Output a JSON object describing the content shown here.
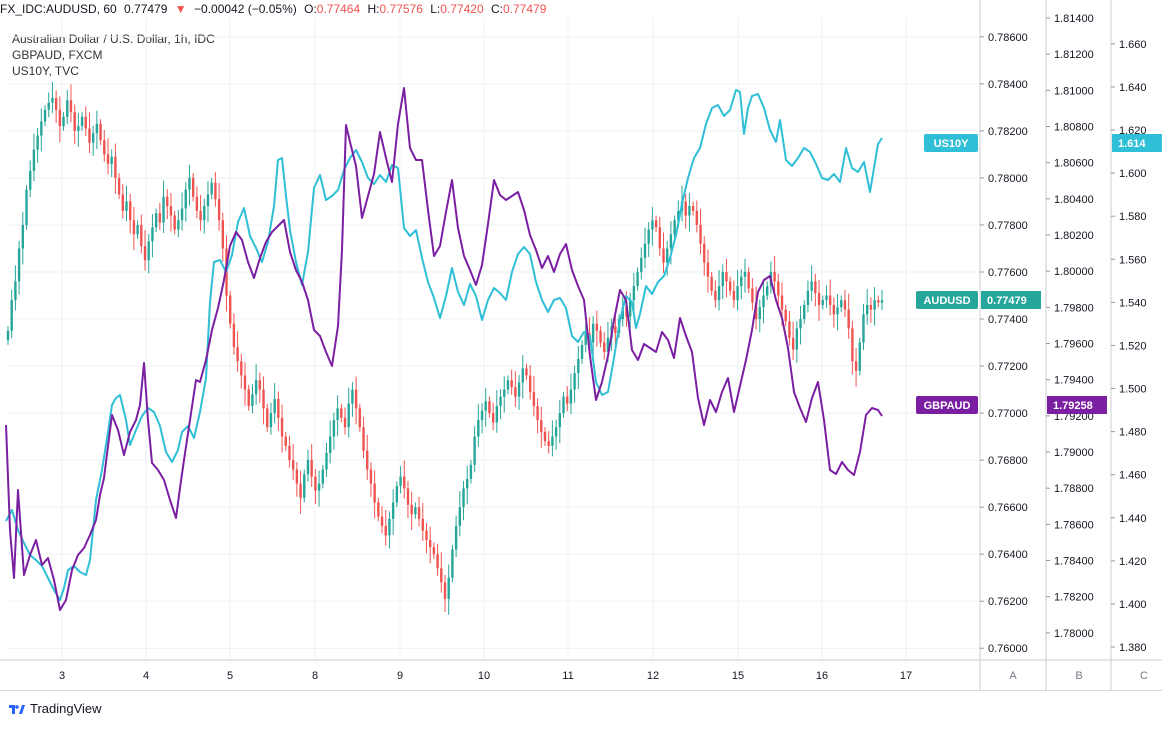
{
  "header": {
    "symbol": "FX_IDC:AUDUSD, 60",
    "last": "0.77479",
    "change": "−0.00042 (−0.05%)",
    "open_label": "O:",
    "open": "0.77464",
    "high_label": "H:",
    "high": "0.77576",
    "low_label": "L:",
    "low": "0.77420",
    "close_label": "C:",
    "close": "0.77479",
    "change_arrow": "▼"
  },
  "legend": {
    "main": "Australian Dollar / U.S. Dollar, 1h, IDC",
    "overlay1": "GBPAUD, FXCM",
    "overlay2": "US10Y, TVC"
  },
  "footer": {
    "brand": "TradingView"
  },
  "colors": {
    "up": "#26a69a",
    "down": "#ef5350",
    "us10y": "#2fbfd6",
    "gbpaud": "#7b1fa2",
    "grid": "#eef0f3"
  },
  "chart_data": {
    "type": "line",
    "x_ticks": [
      "3",
      "4",
      "5",
      "8",
      "9",
      "10",
      "11",
      "12",
      "15",
      "16",
      "17"
    ],
    "axes": {
      "A": {
        "name": "A",
        "min": 0.7595,
        "max": 0.7868,
        "ticks": [
          "0.78600",
          "0.78400",
          "0.78200",
          "0.78000",
          "0.77800",
          "0.77600",
          "0.77400",
          "0.77200",
          "0.77000",
          "0.76800",
          "0.76600",
          "0.76400",
          "0.76200",
          "0.76000"
        ]
      },
      "B": {
        "name": "B",
        "min": 1.7785,
        "max": 1.814,
        "ticks": [
          "1.81400",
          "1.81200",
          "1.81000",
          "1.80800",
          "1.80600",
          "1.80400",
          "1.80200",
          "1.80000",
          "1.79800",
          "1.79600",
          "1.79400",
          "1.79200",
          "1.79000",
          "1.78800",
          "1.78600",
          "1.78400",
          "1.78200",
          "1.78000"
        ]
      },
      "C": {
        "name": "C",
        "min": 1.374,
        "max": 1.672,
        "ticks": [
          "1.660",
          "1.640",
          "1.620",
          "1.600",
          "1.580",
          "1.560",
          "1.540",
          "1.520",
          "1.500",
          "1.480",
          "1.460",
          "1.440",
          "1.420",
          "1.400",
          "1.380"
        ]
      }
    },
    "badges": [
      {
        "label": "US10Y",
        "value": "1.614",
        "color": "#2fbfd6",
        "axis": "C",
        "level": 1.614
      },
      {
        "label": "AUDUSD",
        "value": "0.77479",
        "color": "#26a69a",
        "axis": "A",
        "level": 0.77479
      },
      {
        "label": "GBPAUD",
        "value": "1.79258",
        "color": "#7b1fa2",
        "axis": "B",
        "level": 1.79258
      }
    ],
    "candles_close": [
      0.7735,
      0.7748,
      0.7756,
      0.777,
      0.778,
      0.7795,
      0.7803,
      0.7812,
      0.7818,
      0.7824,
      0.7829,
      0.7832,
      0.7834,
      0.7829,
      0.7822,
      0.7826,
      0.7833,
      0.7828,
      0.782,
      0.7822,
      0.7826,
      0.7821,
      0.7815,
      0.7819,
      0.7823,
      0.7816,
      0.781,
      0.7806,
      0.7809,
      0.78,
      0.7793,
      0.7786,
      0.779,
      0.7782,
      0.7776,
      0.778,
      0.7771,
      0.7765,
      0.7773,
      0.7779,
      0.7785,
      0.7781,
      0.7792,
      0.7788,
      0.7784,
      0.7778,
      0.7782,
      0.7787,
      0.7795,
      0.78,
      0.7792,
      0.7786,
      0.7782,
      0.7788,
      0.7793,
      0.7798,
      0.7791,
      0.7782,
      0.777,
      0.775,
      0.7738,
      0.7728,
      0.7722,
      0.7716,
      0.771,
      0.7703,
      0.7708,
      0.7714,
      0.771,
      0.7702,
      0.7694,
      0.77,
      0.7706,
      0.7698,
      0.769,
      0.7686,
      0.768,
      0.7676,
      0.767,
      0.7664,
      0.7674,
      0.768,
      0.7673,
      0.7667,
      0.767,
      0.7676,
      0.7683,
      0.769,
      0.7697,
      0.7702,
      0.7698,
      0.7694,
      0.7704,
      0.771,
      0.7702,
      0.7694,
      0.7684,
      0.7676,
      0.767,
      0.7662,
      0.7656,
      0.7652,
      0.7648,
      0.7655,
      0.7662,
      0.7669,
      0.7673,
      0.7668,
      0.7661,
      0.7657,
      0.766,
      0.7655,
      0.765,
      0.7646,
      0.7643,
      0.764,
      0.7634,
      0.7628,
      0.7621,
      0.763,
      0.7642,
      0.7652,
      0.766,
      0.7668,
      0.7672,
      0.7678,
      0.769,
      0.7697,
      0.7701,
      0.7705,
      0.77,
      0.7696,
      0.7703,
      0.7707,
      0.771,
      0.7714,
      0.7711,
      0.7707,
      0.7713,
      0.7719,
      0.7716,
      0.7709,
      0.7703,
      0.7697,
      0.7692,
      0.7688,
      0.7686,
      0.769,
      0.7694,
      0.77,
      0.7707,
      0.7704,
      0.771,
      0.7717,
      0.7723,
      0.7729,
      0.7734,
      0.773,
      0.7738,
      0.7735,
      0.773,
      0.7726,
      0.7732,
      0.7737,
      0.7734,
      0.774,
      0.7745,
      0.7741,
      0.7748,
      0.7754,
      0.776,
      0.7766,
      0.7772,
      0.7778,
      0.7782,
      0.7779,
      0.777,
      0.7764,
      0.777,
      0.7776,
      0.7782,
      0.7786,
      0.779,
      0.7784,
      0.7788,
      0.7786,
      0.778,
      0.7772,
      0.7764,
      0.7758,
      0.7752,
      0.7748,
      0.7754,
      0.776,
      0.7756,
      0.7752,
      0.7748,
      0.7754,
      0.7758,
      0.776,
      0.7753,
      0.7747,
      0.774,
      0.7745,
      0.775,
      0.7754,
      0.776,
      0.7756,
      0.775,
      0.7744,
      0.7739,
      0.7732,
      0.7727,
      0.7736,
      0.774,
      0.7746,
      0.7752,
      0.7756,
      0.7751,
      0.7746,
      0.7748,
      0.775,
      0.7746,
      0.7742,
      0.7745,
      0.7748,
      0.7744,
      0.7736,
      0.7722,
      0.7718,
      0.773,
      0.7742,
      0.7746,
      0.7744,
      0.7748,
      0.7747,
      0.7748
    ]
  }
}
